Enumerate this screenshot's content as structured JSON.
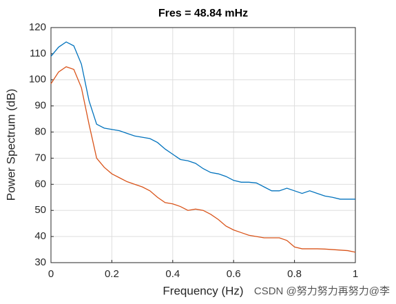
{
  "chart_data": {
    "type": "line",
    "title": "Fres = 48.84 mHz",
    "x_label": "Frequency (Hz)",
    "y_label": "Power Spectrum (dB)",
    "x": [
      0,
      0.025,
      0.05,
      0.075,
      0.1,
      0.125,
      0.15,
      0.175,
      0.2,
      0.225,
      0.25,
      0.275,
      0.3,
      0.325,
      0.35,
      0.375,
      0.4,
      0.425,
      0.45,
      0.475,
      0.5,
      0.525,
      0.55,
      0.575,
      0.6,
      0.625,
      0.65,
      0.675,
      0.7,
      0.725,
      0.75,
      0.775,
      0.8,
      0.825,
      0.85,
      0.875,
      0.9,
      0.925,
      0.95,
      0.975,
      1
    ],
    "series": [
      {
        "color": "#0072bd",
        "values": [
          109,
          112.5,
          114.5,
          113,
          106,
          92,
          83,
          81.5,
          81,
          80.5,
          79.5,
          78.5,
          78,
          77.5,
          76,
          73.5,
          71.5,
          69.5,
          69,
          68,
          66,
          64.5,
          64,
          63,
          61.5,
          60.8,
          60.8,
          60.5,
          59,
          57.5,
          57.5,
          58.5,
          57.5,
          56.5,
          57.5,
          56.5,
          55.5,
          55,
          54.3,
          54.3,
          54.3
        ]
      },
      {
        "color": "#d95319",
        "values": [
          98.5,
          103,
          105,
          104,
          97,
          83,
          70,
          66.5,
          64,
          62.5,
          61,
          60,
          59,
          57.5,
          55,
          53,
          52.5,
          51.5,
          50,
          50.5,
          50,
          48.5,
          46.5,
          44,
          42.5,
          41.5,
          40.5,
          40,
          39.5,
          39.5,
          39.5,
          38.5,
          36,
          35.3,
          35.3,
          35.3,
          35.2,
          35,
          34.8,
          34.6,
          34
        ]
      }
    ],
    "xlim": [
      0,
      1
    ],
    "xticks": [
      0,
      0.2,
      0.4,
      0.6,
      0.8,
      1
    ],
    "ylim": [
      30,
      120
    ],
    "yticks": [
      30,
      40,
      50,
      60,
      70,
      80,
      90,
      100,
      110,
      120
    ],
    "grid": true
  },
  "watermark": "CSDN @努力努力再努力@李"
}
